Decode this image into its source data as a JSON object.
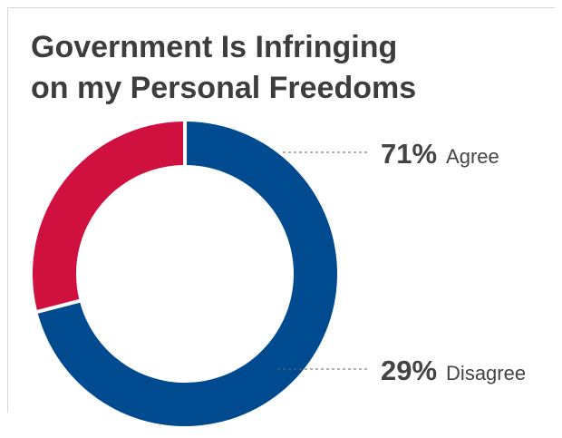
{
  "title_lines": [
    "Government Is Infringing",
    "on my Personal Freedoms"
  ],
  "chart_data": {
    "type": "pie",
    "variant": "donut",
    "title": "Government Is Infringing on my Personal Freedoms",
    "slices": [
      {
        "label": "Agree",
        "value": 71,
        "display": "71%",
        "color": "#004a8f"
      },
      {
        "label": "Disagree",
        "value": 29,
        "display": "29%",
        "color": "#d0103f"
      }
    ],
    "legend": "none",
    "labels_placement": "right-of-chart-with-dashed-leaders"
  }
}
